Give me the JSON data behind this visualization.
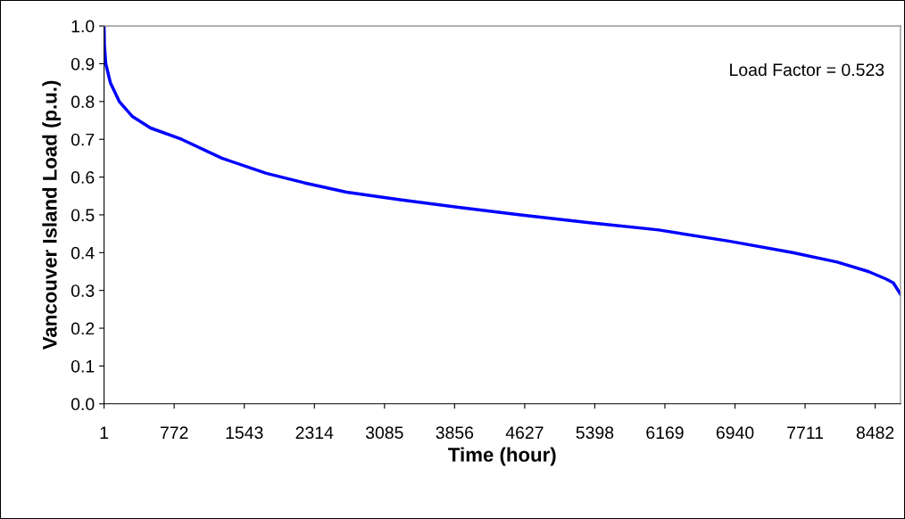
{
  "chart_data": {
    "type": "line",
    "xlabel": "Time (hour)",
    "ylabel": "Vancouver Island Load (p.u.)",
    "annotations": [
      "Load Factor = 0.523"
    ],
    "series": [
      {
        "color": "#0000ff",
        "x": [
          1,
          5,
          20,
          70,
          168,
          315,
          511,
          854,
          1296,
          1786,
          2200,
          2669,
          3258,
          3900,
          4582,
          5318,
          6102,
          6887,
          7574,
          8064,
          8408,
          8604,
          8682,
          8760
        ],
        "values": [
          1.0,
          0.95,
          0.9,
          0.85,
          0.8,
          0.76,
          0.73,
          0.7,
          0.65,
          0.61,
          0.585,
          0.56,
          0.54,
          0.52,
          0.5,
          0.48,
          0.46,
          0.43,
          0.4,
          0.375,
          0.35,
          0.33,
          0.32,
          0.29
        ]
      }
    ],
    "xlim": [
      1,
      8760
    ],
    "xticks": [
      1,
      772,
      1543,
      2314,
      3085,
      3856,
      4627,
      5398,
      6169,
      6940,
      7711,
      8482
    ],
    "ylim": [
      0,
      1
    ],
    "yticks": [
      {
        "value": 0,
        "label": "0.0"
      },
      {
        "value": 0.1,
        "label": "0.1"
      },
      {
        "value": 0.2,
        "label": "0.2"
      },
      {
        "value": 0.3,
        "label": "0.3"
      },
      {
        "value": 0.4,
        "label": "0.4"
      },
      {
        "value": 0.5,
        "label": "0.5"
      },
      {
        "value": 0.6,
        "label": "0.6"
      },
      {
        "value": 0.7,
        "label": "0.7"
      },
      {
        "value": 0.8,
        "label": "0.8"
      },
      {
        "value": 0.9,
        "label": "0.9"
      },
      {
        "value": 1,
        "label": "1.0"
      }
    ],
    "grid": false,
    "line_style": "solid",
    "marker": "none"
  }
}
